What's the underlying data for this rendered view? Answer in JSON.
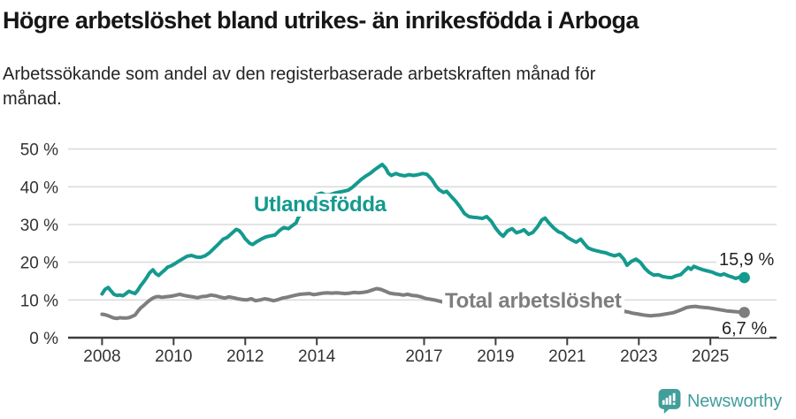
{
  "header": {
    "title": "Högre arbetslöshet bland utrikes- än inrikesfödda i Arboga",
    "subtitle_line1": "Arbetssökande som andel av den registerbaserade arbetskraften månad för",
    "subtitle_line2": "månad."
  },
  "colors": {
    "teal": "#149a8e",
    "gray": "#7e7e7e",
    "grid": "#dcdcdc",
    "axis": "#3d3d3d",
    "tick_text": "#333333"
  },
  "branding": {
    "name": "Newsworthy",
    "color": "#429e9b"
  },
  "chart_data": {
    "type": "line",
    "title": "Högre arbetslöshet bland utrikes- än inrikesfödda i Arboga",
    "subtitle": "Arbetssökande som andel av den registerbaserade arbetskraften månad för månad.",
    "xlabel": "",
    "ylabel": "",
    "grid": "horizontal",
    "xlim": [
      2007.05,
      2026.85
    ],
    "ylim": [
      0,
      50
    ],
    "y_ticks": [
      0,
      10,
      20,
      30,
      40,
      50
    ],
    "y_tick_suffix": " %",
    "x_ticks": [
      2008,
      2010,
      2012,
      2014,
      2017,
      2019,
      2021,
      2023,
      2025
    ],
    "series": [
      {
        "name": "Utlandsfödda",
        "color": "#149a8e",
        "end_label": "15,9 %",
        "end_value": 15.9,
        "points": [
          [
            2008.0,
            11.6
          ],
          [
            2008.08,
            12.8
          ],
          [
            2008.17,
            13.3
          ],
          [
            2008.25,
            12.4
          ],
          [
            2008.33,
            11.5
          ],
          [
            2008.42,
            11.2
          ],
          [
            2008.5,
            11.3
          ],
          [
            2008.58,
            11.1
          ],
          [
            2008.67,
            11.7
          ],
          [
            2008.75,
            12.3
          ],
          [
            2008.83,
            12.0
          ],
          [
            2008.92,
            11.7
          ],
          [
            2009.0,
            12.6
          ],
          [
            2009.08,
            13.8
          ],
          [
            2009.17,
            14.9
          ],
          [
            2009.25,
            16.0
          ],
          [
            2009.33,
            17.2
          ],
          [
            2009.42,
            18.0
          ],
          [
            2009.5,
            17.0
          ],
          [
            2009.58,
            16.5
          ],
          [
            2009.67,
            17.3
          ],
          [
            2009.75,
            17.9
          ],
          [
            2009.83,
            18.7
          ],
          [
            2009.92,
            19.0
          ],
          [
            2010.0,
            19.4
          ],
          [
            2010.13,
            20.2
          ],
          [
            2010.25,
            20.9
          ],
          [
            2010.38,
            21.6
          ],
          [
            2010.5,
            21.8
          ],
          [
            2010.63,
            21.4
          ],
          [
            2010.75,
            21.3
          ],
          [
            2010.88,
            21.7
          ],
          [
            2011.0,
            22.5
          ],
          [
            2011.13,
            23.7
          ],
          [
            2011.25,
            24.8
          ],
          [
            2011.38,
            26.1
          ],
          [
            2011.5,
            26.6
          ],
          [
            2011.63,
            27.7
          ],
          [
            2011.75,
            28.7
          ],
          [
            2011.83,
            28.4
          ],
          [
            2011.92,
            27.4
          ],
          [
            2012.0,
            26.2
          ],
          [
            2012.13,
            25.0
          ],
          [
            2012.21,
            24.7
          ],
          [
            2012.33,
            25.5
          ],
          [
            2012.46,
            26.2
          ],
          [
            2012.58,
            26.7
          ],
          [
            2012.71,
            27.0
          ],
          [
            2012.83,
            27.2
          ],
          [
            2012.96,
            28.4
          ],
          [
            2013.08,
            29.2
          ],
          [
            2013.21,
            28.9
          ],
          [
            2013.33,
            29.8
          ],
          [
            2013.42,
            30.4
          ],
          [
            2013.5,
            32.2
          ],
          [
            2013.63,
            32.9
          ],
          [
            2013.75,
            34.6
          ],
          [
            2013.88,
            36.5
          ],
          [
            2014.0,
            37.9
          ],
          [
            2014.13,
            38.3
          ],
          [
            2014.25,
            37.8
          ],
          [
            2014.38,
            37.9
          ],
          [
            2014.5,
            38.3
          ],
          [
            2014.63,
            38.6
          ],
          [
            2014.75,
            38.8
          ],
          [
            2014.88,
            39.1
          ],
          [
            2015.0,
            39.9
          ],
          [
            2015.13,
            41.0
          ],
          [
            2015.25,
            42.0
          ],
          [
            2015.38,
            42.9
          ],
          [
            2015.5,
            43.6
          ],
          [
            2015.63,
            44.6
          ],
          [
            2015.75,
            45.4
          ],
          [
            2015.83,
            45.9
          ],
          [
            2015.92,
            45.0
          ],
          [
            2016.0,
            43.6
          ],
          [
            2016.08,
            43.0
          ],
          [
            2016.21,
            43.5
          ],
          [
            2016.33,
            43.1
          ],
          [
            2016.46,
            42.9
          ],
          [
            2016.58,
            43.2
          ],
          [
            2016.71,
            43.0
          ],
          [
            2016.83,
            43.2
          ],
          [
            2016.96,
            43.5
          ],
          [
            2017.08,
            43.3
          ],
          [
            2017.21,
            42.0
          ],
          [
            2017.33,
            40.2
          ],
          [
            2017.42,
            39.2
          ],
          [
            2017.54,
            38.5
          ],
          [
            2017.63,
            38.8
          ],
          [
            2017.75,
            37.5
          ],
          [
            2017.88,
            36.2
          ],
          [
            2018.0,
            34.7
          ],
          [
            2018.13,
            32.9
          ],
          [
            2018.25,
            32.1
          ],
          [
            2018.38,
            31.9
          ],
          [
            2018.5,
            31.8
          ],
          [
            2018.63,
            31.6
          ],
          [
            2018.75,
            32.1
          ],
          [
            2018.88,
            30.8
          ],
          [
            2019.0,
            29.0
          ],
          [
            2019.13,
            27.5
          ],
          [
            2019.21,
            26.9
          ],
          [
            2019.33,
            28.3
          ],
          [
            2019.46,
            28.9
          ],
          [
            2019.58,
            27.8
          ],
          [
            2019.71,
            28.2
          ],
          [
            2019.79,
            28.6
          ],
          [
            2019.92,
            27.4
          ],
          [
            2020.04,
            27.9
          ],
          [
            2020.17,
            29.4
          ],
          [
            2020.29,
            31.2
          ],
          [
            2020.38,
            31.7
          ],
          [
            2020.5,
            30.3
          ],
          [
            2020.63,
            29.0
          ],
          [
            2020.75,
            28.1
          ],
          [
            2020.88,
            27.6
          ],
          [
            2021.0,
            26.6
          ],
          [
            2021.13,
            25.9
          ],
          [
            2021.25,
            25.3
          ],
          [
            2021.38,
            26.1
          ],
          [
            2021.46,
            25.1
          ],
          [
            2021.58,
            23.8
          ],
          [
            2021.71,
            23.3
          ],
          [
            2021.83,
            23.0
          ],
          [
            2021.96,
            22.7
          ],
          [
            2022.08,
            22.5
          ],
          [
            2022.21,
            22.0
          ],
          [
            2022.33,
            21.7
          ],
          [
            2022.46,
            22.1
          ],
          [
            2022.58,
            20.8
          ],
          [
            2022.67,
            19.2
          ],
          [
            2022.79,
            20.2
          ],
          [
            2022.92,
            20.8
          ],
          [
            2023.04,
            20.0
          ],
          [
            2023.17,
            18.4
          ],
          [
            2023.29,
            17.3
          ],
          [
            2023.42,
            16.6
          ],
          [
            2023.54,
            16.7
          ],
          [
            2023.67,
            16.2
          ],
          [
            2023.79,
            16.0
          ],
          [
            2023.92,
            15.9
          ],
          [
            2024.04,
            16.4
          ],
          [
            2024.17,
            16.7
          ],
          [
            2024.29,
            17.8
          ],
          [
            2024.38,
            18.6
          ],
          [
            2024.46,
            18.1
          ],
          [
            2024.54,
            18.9
          ],
          [
            2024.67,
            18.4
          ],
          [
            2024.79,
            18.0
          ],
          [
            2024.92,
            17.7
          ],
          [
            2025.04,
            17.4
          ],
          [
            2025.17,
            16.9
          ],
          [
            2025.29,
            16.6
          ],
          [
            2025.38,
            16.9
          ],
          [
            2025.5,
            16.4
          ],
          [
            2025.63,
            16.0
          ],
          [
            2025.71,
            15.7
          ],
          [
            2025.83,
            16.1
          ],
          [
            2025.95,
            15.9
          ]
        ]
      },
      {
        "name": "Total arbetslöshet",
        "color": "#7e7e7e",
        "end_label": "6,7 %",
        "end_value": 6.7,
        "points": [
          [
            2008.0,
            6.2
          ],
          [
            2008.08,
            6.1
          ],
          [
            2008.17,
            5.8
          ],
          [
            2008.25,
            5.5
          ],
          [
            2008.33,
            5.2
          ],
          [
            2008.42,
            5.1
          ],
          [
            2008.5,
            5.3
          ],
          [
            2008.58,
            5.2
          ],
          [
            2008.67,
            5.2
          ],
          [
            2008.75,
            5.3
          ],
          [
            2008.83,
            5.6
          ],
          [
            2008.92,
            6.0
          ],
          [
            2009.0,
            7.0
          ],
          [
            2009.08,
            7.9
          ],
          [
            2009.17,
            8.6
          ],
          [
            2009.25,
            9.3
          ],
          [
            2009.33,
            9.9
          ],
          [
            2009.42,
            10.5
          ],
          [
            2009.5,
            10.8
          ],
          [
            2009.58,
            10.9
          ],
          [
            2009.67,
            10.7
          ],
          [
            2009.75,
            10.8
          ],
          [
            2009.83,
            10.9
          ],
          [
            2009.92,
            11.0
          ],
          [
            2010.04,
            11.2
          ],
          [
            2010.17,
            11.5
          ],
          [
            2010.29,
            11.2
          ],
          [
            2010.42,
            11.0
          ],
          [
            2010.54,
            10.8
          ],
          [
            2010.67,
            10.6
          ],
          [
            2010.79,
            10.9
          ],
          [
            2010.92,
            11.0
          ],
          [
            2011.04,
            11.3
          ],
          [
            2011.17,
            11.1
          ],
          [
            2011.29,
            10.8
          ],
          [
            2011.42,
            10.5
          ],
          [
            2011.54,
            10.8
          ],
          [
            2011.67,
            10.6
          ],
          [
            2011.79,
            10.3
          ],
          [
            2011.92,
            10.1
          ],
          [
            2012.04,
            10.0
          ],
          [
            2012.17,
            10.3
          ],
          [
            2012.29,
            9.8
          ],
          [
            2012.42,
            10.0
          ],
          [
            2012.54,
            10.3
          ],
          [
            2012.67,
            10.1
          ],
          [
            2012.79,
            9.8
          ],
          [
            2012.92,
            10.1
          ],
          [
            2013.04,
            10.5
          ],
          [
            2013.17,
            10.7
          ],
          [
            2013.29,
            11.0
          ],
          [
            2013.42,
            11.3
          ],
          [
            2013.54,
            11.5
          ],
          [
            2013.67,
            11.6
          ],
          [
            2013.79,
            11.7
          ],
          [
            2013.92,
            11.4
          ],
          [
            2014.04,
            11.6
          ],
          [
            2014.17,
            11.8
          ],
          [
            2014.29,
            11.9
          ],
          [
            2014.42,
            11.8
          ],
          [
            2014.54,
            11.9
          ],
          [
            2014.67,
            11.8
          ],
          [
            2014.79,
            11.7
          ],
          [
            2014.92,
            11.8
          ],
          [
            2015.04,
            12.0
          ],
          [
            2015.17,
            11.9
          ],
          [
            2015.29,
            12.0
          ],
          [
            2015.42,
            12.2
          ],
          [
            2015.54,
            12.6
          ],
          [
            2015.67,
            13.0
          ],
          [
            2015.79,
            12.8
          ],
          [
            2015.92,
            12.3
          ],
          [
            2016.04,
            11.8
          ],
          [
            2016.17,
            11.6
          ],
          [
            2016.29,
            11.5
          ],
          [
            2016.42,
            11.3
          ],
          [
            2016.54,
            11.5
          ],
          [
            2016.67,
            11.2
          ],
          [
            2016.79,
            11.1
          ],
          [
            2016.92,
            10.8
          ],
          [
            2017.04,
            10.4
          ],
          [
            2017.17,
            10.2
          ],
          [
            2017.29,
            10.0
          ],
          [
            2017.42,
            9.7
          ],
          [
            2017.54,
            9.4
          ],
          [
            2017.71,
            9.1
          ],
          [
            2017.92,
            8.9
          ],
          [
            2018.17,
            8.6
          ],
          [
            2018.42,
            8.4
          ],
          [
            2018.71,
            8.3
          ],
          [
            2019.0,
            8.2
          ],
          [
            2019.29,
            8.3
          ],
          [
            2019.58,
            8.5
          ],
          [
            2019.88,
            8.8
          ],
          [
            2020.17,
            9.4
          ],
          [
            2020.42,
            9.8
          ],
          [
            2020.71,
            9.6
          ],
          [
            2021.0,
            9.1
          ],
          [
            2021.29,
            8.7
          ],
          [
            2021.58,
            8.2
          ],
          [
            2021.88,
            7.8
          ],
          [
            2022.13,
            7.5
          ],
          [
            2022.33,
            7.4
          ],
          [
            2022.46,
            7.2
          ],
          [
            2022.58,
            7.0
          ],
          [
            2022.71,
            6.8
          ],
          [
            2022.83,
            6.5
          ],
          [
            2022.96,
            6.3
          ],
          [
            2023.08,
            6.1
          ],
          [
            2023.21,
            5.9
          ],
          [
            2023.33,
            5.8
          ],
          [
            2023.46,
            5.9
          ],
          [
            2023.58,
            6.0
          ],
          [
            2023.71,
            6.2
          ],
          [
            2023.83,
            6.4
          ],
          [
            2023.96,
            6.6
          ],
          [
            2024.08,
            7.0
          ],
          [
            2024.21,
            7.5
          ],
          [
            2024.33,
            8.0
          ],
          [
            2024.46,
            8.2
          ],
          [
            2024.58,
            8.3
          ],
          [
            2024.71,
            8.1
          ],
          [
            2024.83,
            8.0
          ],
          [
            2024.96,
            7.9
          ],
          [
            2025.08,
            7.7
          ],
          [
            2025.21,
            7.5
          ],
          [
            2025.33,
            7.3
          ],
          [
            2025.46,
            7.1
          ],
          [
            2025.58,
            7.0
          ],
          [
            2025.71,
            6.9
          ],
          [
            2025.83,
            6.8
          ],
          [
            2025.95,
            6.7
          ]
        ]
      }
    ]
  }
}
